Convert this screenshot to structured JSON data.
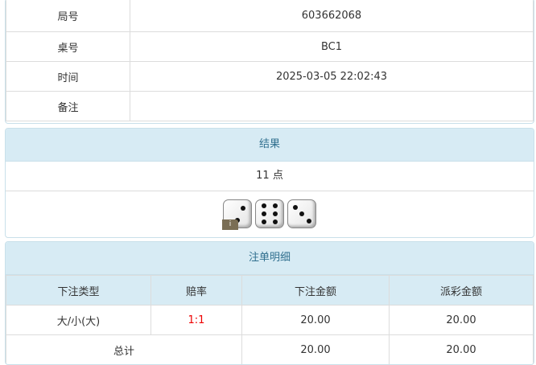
{
  "info": {
    "rows": [
      {
        "label": "局号",
        "value": "603662068"
      },
      {
        "label": "桌号",
        "value": "BC1"
      },
      {
        "label": "时间",
        "value": "2025-03-05 22:02:43"
      },
      {
        "label": "备注",
        "value": ""
      }
    ]
  },
  "result": {
    "title": "结果",
    "points": "11 点",
    "dice": [
      2,
      6,
      3
    ],
    "info_badge": "i"
  },
  "bets": {
    "title": "注单明细",
    "headers": [
      "下注类型",
      "赔率",
      "下注金额",
      "派彩金额"
    ],
    "rows": [
      {
        "type": "大/小(大)",
        "odds": "1:1",
        "amount": "20.00",
        "payout": "20.00"
      }
    ],
    "total": {
      "label": "总计",
      "amount": "20.00",
      "payout": "20.00"
    },
    "odds_color": "#e00000"
  }
}
